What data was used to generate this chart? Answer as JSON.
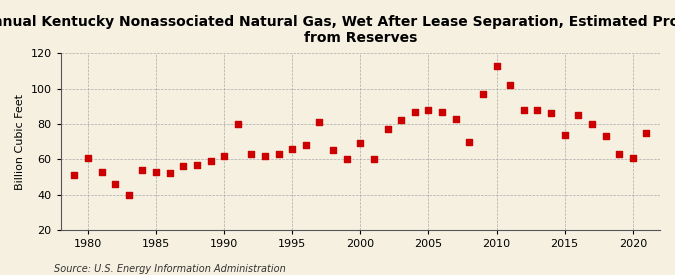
{
  "title": "Annual Kentucky Nonassociated Natural Gas, Wet After Lease Separation, Estimated Production\nfrom Reserves",
  "ylabel": "Billion Cubic Feet",
  "source": "Source: U.S. Energy Information Administration",
  "background_color": "#f5f0e0",
  "plot_background_color": "#f5f0e0",
  "marker_color": "#cc0000",
  "years": [
    1979,
    1980,
    1981,
    1982,
    1983,
    1984,
    1985,
    1986,
    1987,
    1988,
    1989,
    1990,
    1991,
    1992,
    1993,
    1994,
    1995,
    1996,
    1997,
    1998,
    1999,
    2000,
    2001,
    2002,
    2003,
    2004,
    2005,
    2006,
    2007,
    2008,
    2009,
    2010,
    2011,
    2012,
    2013,
    2014,
    2015,
    2016,
    2017,
    2018,
    2019,
    2020,
    2021
  ],
  "values": [
    51,
    61,
    53,
    46,
    40,
    54,
    53,
    52,
    56,
    57,
    59,
    62,
    80,
    63,
    62,
    63,
    66,
    68,
    81,
    65,
    60,
    69,
    60,
    77,
    82,
    87,
    88,
    87,
    83,
    70,
    97,
    113,
    102,
    88,
    88,
    86,
    74,
    85,
    80,
    73,
    63,
    61,
    75
  ],
  "xlim": [
    1978,
    2022
  ],
  "ylim": [
    20,
    120
  ],
  "yticks": [
    20,
    40,
    60,
    80,
    100,
    120
  ],
  "xticks": [
    1980,
    1985,
    1990,
    1995,
    2000,
    2005,
    2010,
    2015,
    2020
  ],
  "grid_color": "#aaaaaa",
  "title_fontsize": 10,
  "label_fontsize": 8,
  "source_fontsize": 7
}
